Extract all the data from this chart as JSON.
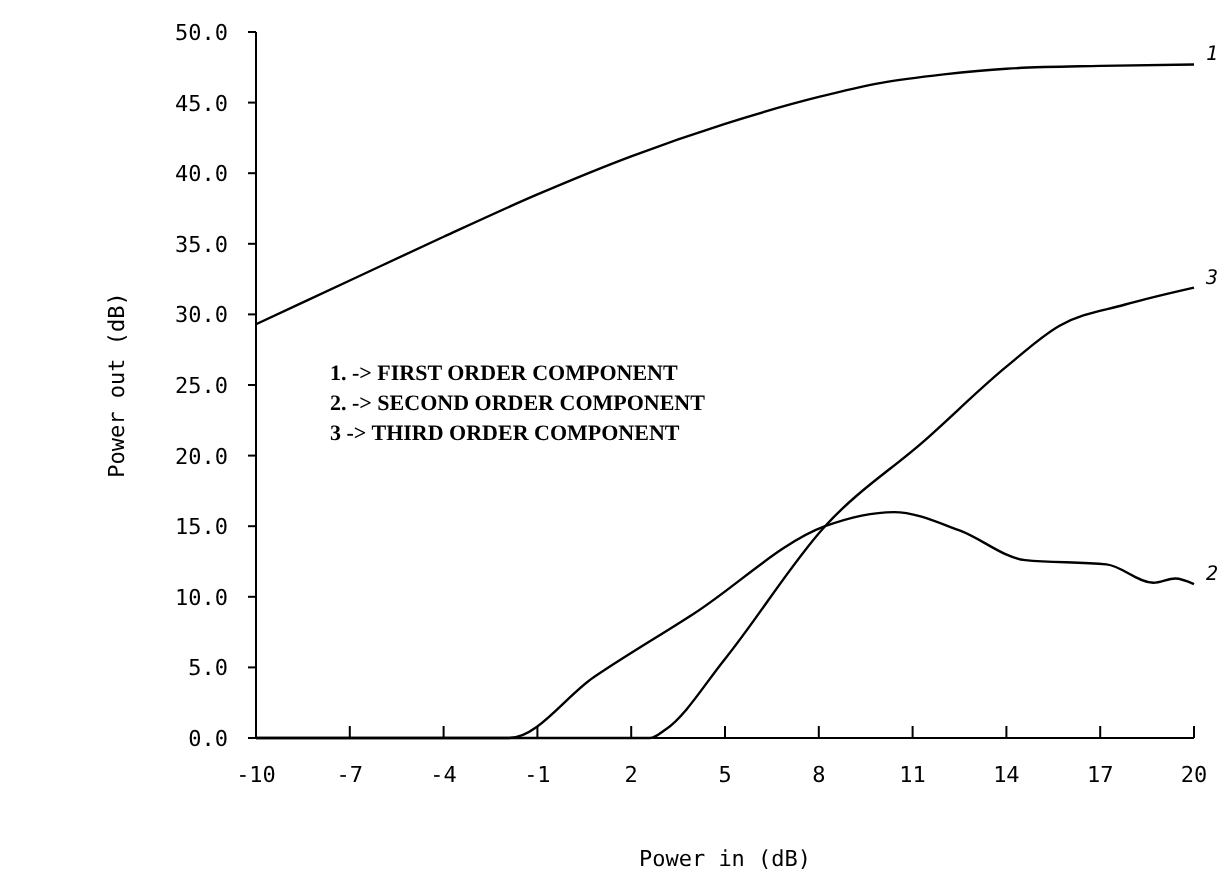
{
  "chart_data": {
    "type": "line",
    "xlabel": "Power in (dB)",
    "ylabel": "Power out (dB)",
    "xlim": [
      -10,
      20
    ],
    "xticks": [
      -10,
      -7,
      -4,
      -1,
      2,
      5,
      8,
      11,
      14,
      17,
      20
    ],
    "ylim": [
      0,
      50
    ],
    "yticks": [
      {
        "value": 0,
        "label": "0.0"
      },
      {
        "value": 5,
        "label": "5.0"
      },
      {
        "value": 10,
        "label": "10.0"
      },
      {
        "value": 15,
        "label": "15.0"
      },
      {
        "value": 20,
        "label": "20.0"
      },
      {
        "value": 25,
        "label": "25.0"
      },
      {
        "value": 30,
        "label": "30.0"
      },
      {
        "value": 35,
        "label": "35.0"
      },
      {
        "value": 40,
        "label": "40.0"
      },
      {
        "value": 45,
        "label": "45.0"
      },
      {
        "value": 50,
        "label": "50.0"
      }
    ],
    "grid": false,
    "marker": "none",
    "line_style": "solid",
    "annotations": [
      "1. -> FIRST ORDER COMPONENT",
      "2. -> SECOND ORDER COMPONENT",
      "3  -> THIRD ORDER COMPONENT"
    ],
    "series": [
      {
        "name": "1",
        "color": "#000000",
        "x": [
          -10,
          -7,
          -4,
          -1,
          2,
          5,
          8,
          10,
          12,
          14,
          17,
          20
        ],
        "values": [
          29.3,
          32.4,
          35.5,
          38.5,
          41.2,
          43.5,
          45.4,
          46.4,
          47.0,
          47.4,
          47.6,
          47.7
        ]
      },
      {
        "name": "2",
        "color": "#000000",
        "x": [
          -10,
          -1.9,
          0.8,
          4.0,
          8.2,
          10.4,
          12.5,
          14.6,
          17.2,
          18.7,
          19.4,
          20
        ],
        "values": [
          0,
          0,
          4.3,
          8.8,
          15.0,
          16.0,
          14.7,
          12.6,
          12.3,
          11.0,
          11.3,
          10.9
        ]
      },
      {
        "name": "3",
        "color": "#000000",
        "x": [
          -10,
          2.6,
          3.1,
          5,
          8.2,
          11.4,
          14,
          15.7,
          17.8,
          20
        ],
        "values": [
          0,
          0,
          0.6,
          5.6,
          15.0,
          21.1,
          26.3,
          29.2,
          30.7,
          31.9
        ]
      }
    ]
  }
}
